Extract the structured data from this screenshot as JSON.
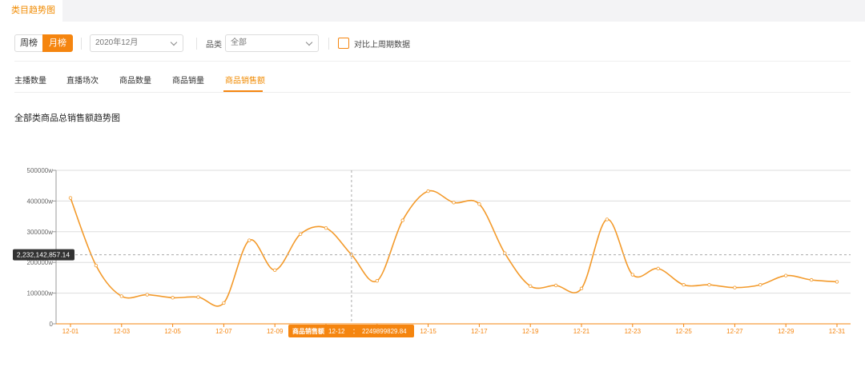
{
  "top_tab": {
    "label": "类目趋势图"
  },
  "filters": {
    "week_label": "周榜",
    "month_label": "月榜",
    "date_value": "2020年12月",
    "category_label": "品类",
    "category_value": "全部",
    "compare_label": "对比上周期数据"
  },
  "metric_tabs": [
    "主播数量",
    "直播场次",
    "商品数量",
    "商品销量",
    "商品销售额"
  ],
  "active_metric_index": 4,
  "colors": {
    "accent": "#f5850f",
    "line": "#f39a2b"
  },
  "chart_data": {
    "type": "line",
    "title": "全部类商品总销售额趋势图",
    "x": [
      "12-01",
      "12-02",
      "12-03",
      "12-04",
      "12-05",
      "12-06",
      "12-07",
      "12-08",
      "12-09",
      "12-10",
      "12-11",
      "12-12",
      "12-13",
      "12-14",
      "12-15",
      "12-16",
      "12-17",
      "12-18",
      "12-19",
      "12-20",
      "12-21",
      "12-22",
      "12-23",
      "12-24",
      "12-25",
      "12-26",
      "12-27",
      "12-28",
      "12-29",
      "12-30",
      "12-31"
    ],
    "x_tick_labels": [
      "12-01",
      "12-03",
      "12-05",
      "12-07",
      "12-09",
      "12-11",
      "12-13",
      "12-15",
      "12-17",
      "12-19",
      "12-21",
      "12-23",
      "12-25",
      "12-27",
      "12-29",
      "12-31"
    ],
    "series": [
      {
        "values": [
          410000,
          190000,
          90000,
          95000,
          85000,
          87000,
          68000,
          272000,
          175000,
          292000,
          312000,
          224990,
          140000,
          337000,
          432000,
          395000,
          390000,
          230000,
          123000,
          125000,
          115000,
          340000,
          160000,
          180000,
          127000,
          127000,
          118000,
          127000,
          157000,
          143000,
          137000
        ]
      }
    ],
    "y_ticks": [
      0,
      100000,
      200000,
      300000,
      400000,
      500000
    ],
    "y_tick_labels": [
      "0",
      "100000w",
      "200000w",
      "300000w",
      "400000w",
      "500000w"
    ],
    "ylim": [
      0,
      500000
    ],
    "grid": true,
    "crosshair": {
      "index": 11,
      "y_readout": "2,232,142,857.14",
      "tooltip_series": "商品销售额",
      "tooltip_x": "12-12",
      "tooltip_sep": "：",
      "tooltip_value": "2249899829.84"
    }
  }
}
